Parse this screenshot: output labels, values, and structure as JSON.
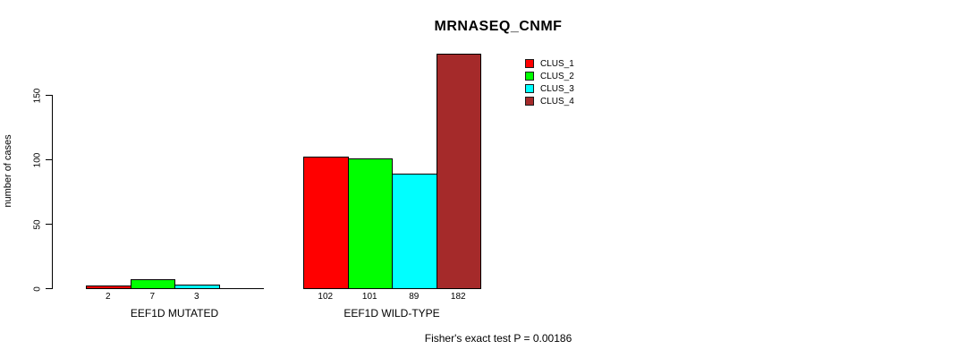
{
  "chart_data": {
    "type": "bar",
    "title": "MRNASEQ_CNMF",
    "ylabel": "number of cases",
    "xlabel": "",
    "categories": [
      "EEF1D MUTATED",
      "EEF1D WILD-TYPE"
    ],
    "series": [
      {
        "name": "CLUS_1",
        "color": "#FF0000",
        "values": [
          2,
          102
        ]
      },
      {
        "name": "CLUS_2",
        "color": "#00FF00",
        "values": [
          7,
          101
        ]
      },
      {
        "name": "CLUS_3",
        "color": "#00FFFF",
        "values": [
          3,
          89
        ]
      },
      {
        "name": "CLUS_4",
        "color": "#A52A2A",
        "values": [
          0,
          182
        ]
      }
    ],
    "bar_value_labels": [
      "2",
      "7",
      "3",
      "",
      "102",
      "101",
      "89",
      "182"
    ],
    "zero_value_labels_hidden": true,
    "yticks": [
      0,
      50,
      100,
      150
    ],
    "ylim": [
      0,
      190
    ],
    "grid": false,
    "legend_position": "top-right",
    "legend_entries": [
      "CLUS_1",
      "CLUS_2",
      "CLUS_3",
      "CLUS_4"
    ],
    "annotation": "Fisher's exact test P = 0.00186",
    "axis_color": "#000000",
    "background_color": "#FFFFFF"
  }
}
